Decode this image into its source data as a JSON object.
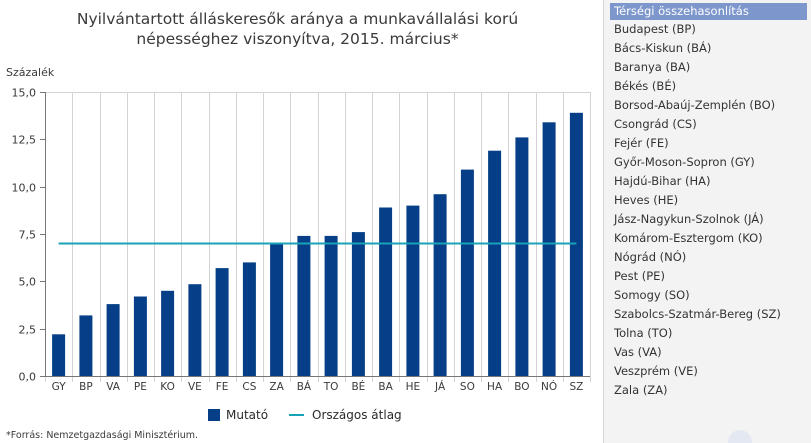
{
  "chart": {
    "title_line1": "Nyilvántartott álláskeresők aránya a munkavállalási korú",
    "title_line2": "népességhez viszonyítva, 2015. március*",
    "source": "*Forrás: Nemzetgazdasági Minisztérium."
  },
  "chart_data": {
    "type": "bar",
    "title": "Nyilvántartott álláskeresők aránya a munkavállalási korú népességhez viszonyítva, 2015. március*",
    "ylabel": "Százalék",
    "xlabel": "",
    "categories": [
      "GY",
      "BP",
      "VA",
      "PE",
      "KO",
      "VE",
      "FE",
      "CS",
      "ZA",
      "BÁ",
      "TO",
      "BÉ",
      "BA",
      "HE",
      "JÁ",
      "SO",
      "HA",
      "BO",
      "NÓ",
      "SZ"
    ],
    "series": [
      {
        "name": "Mutató",
        "type": "bar",
        "color": "#063f87",
        "values": [
          2.2,
          3.2,
          3.8,
          4.2,
          4.5,
          4.85,
          5.7,
          6.0,
          7.0,
          7.4,
          7.4,
          7.6,
          8.9,
          9.0,
          9.6,
          10.9,
          11.9,
          12.6,
          13.4,
          13.9
        ]
      },
      {
        "name": "Országos átlag",
        "type": "line",
        "color": "#18a3b8",
        "value": 7.0
      }
    ],
    "yticks": [
      "0,0",
      "2,5",
      "5,0",
      "7,5",
      "10,0",
      "12,5",
      "15,0"
    ],
    "ylim": [
      0,
      15
    ],
    "grid": "vertical",
    "legend": "bottom"
  },
  "sidebar": {
    "title": "Térségi összehasonlítás",
    "items": [
      "Budapest (BP)",
      "Bács-Kiskun (BÁ)",
      "Baranya (BA)",
      "Békés (BÉ)",
      "Borsod-Abaúj-Zemplén (BO)",
      "Csongrád (CS)",
      "Fejér (FE)",
      "Győr-Moson-Sopron (GY)",
      "Hajdú-Bihar (HA)",
      "Heves (HE)",
      "Jász-Nagykun-Szolnok (JÁ)",
      "Komárom-Esztergom (KO)",
      "Nógrád (NÓ)",
      "Pest (PE)",
      "Somogy (SO)",
      "Szabolcs-Szatmár-Bereg (SZ)",
      "Tolna (TO)",
      "Vas (VA)",
      "Veszprém (VE)",
      "Zala (ZA)"
    ],
    "active_color": "#7d97cd"
  }
}
